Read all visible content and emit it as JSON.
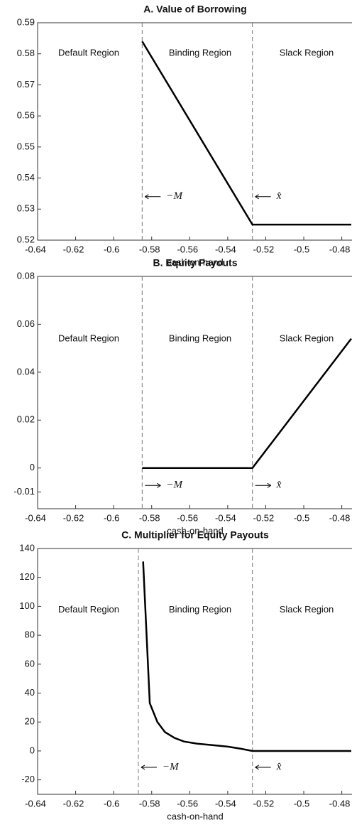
{
  "chart_data": [
    {
      "type": "line",
      "title": "A. Value of Borrowing",
      "x_label": "cash-on-hand",
      "xlim": [
        -0.64,
        -0.475
      ],
      "xticks": [
        -0.64,
        -0.62,
        -0.6,
        -0.58,
        -0.56,
        -0.54,
        -0.52,
        -0.5,
        -0.48
      ],
      "ylim": [
        0.52,
        0.59
      ],
      "yticks": [
        0.52,
        0.53,
        0.54,
        0.55,
        0.56,
        0.57,
        0.58,
        0.59
      ],
      "series": [
        {
          "color": "#000000",
          "x": [
            -0.585,
            -0.527,
            -0.475
          ],
          "values": [
            0.584,
            0.525,
            0.525
          ]
        }
      ],
      "vlines": [
        -0.585,
        -0.527
      ],
      "vline_labels": [
        "−M",
        "x̂"
      ],
      "regions": [
        "Default Region",
        "Binding Region",
        "Slack Region"
      ]
    },
    {
      "type": "line",
      "title": "B. Equity Payouts",
      "x_label": "cash-on-hand",
      "xlim": [
        -0.64,
        -0.475
      ],
      "xticks": [
        -0.64,
        -0.62,
        -0.6,
        -0.58,
        -0.56,
        -0.54,
        -0.52,
        -0.5,
        -0.48
      ],
      "ylim": [
        -0.017,
        0.08
      ],
      "yticks": [
        -0.01,
        0,
        0.02,
        0.04,
        0.06,
        0.08
      ],
      "series": [
        {
          "color": "#000000",
          "x": [
            -0.585,
            -0.527,
            -0.475
          ],
          "values": [
            0,
            0,
            0.054
          ]
        }
      ],
      "vlines": [
        -0.585,
        -0.527
      ],
      "vline_labels": [
        "−M",
        "x̂"
      ],
      "regions": [
        "Default Region",
        "Binding Region",
        "Slack Region"
      ]
    },
    {
      "type": "line",
      "title": "C. Multiplier for Equity Payouts",
      "x_label": "cash-on-hand",
      "xlim": [
        -0.64,
        -0.475
      ],
      "xticks": [
        -0.64,
        -0.62,
        -0.6,
        -0.58,
        -0.56,
        -0.54,
        -0.52,
        -0.5,
        -0.48
      ],
      "ylim": [
        -30,
        140
      ],
      "yticks": [
        -20,
        0,
        20,
        40,
        60,
        80,
        100,
        120,
        140
      ],
      "series": [
        {
          "color": "#000000",
          "x": [
            -0.5845,
            -0.581,
            -0.577,
            -0.573,
            -0.568,
            -0.563,
            -0.556,
            -0.548,
            -0.54,
            -0.533,
            -0.527,
            -0.475
          ],
          "values": [
            131,
            33,
            20,
            13,
            9,
            6.5,
            5,
            4,
            3,
            1.5,
            0,
            0
          ]
        }
      ],
      "vlines": [
        -0.587,
        -0.527
      ],
      "vline_labels": [
        "−M",
        "x̂"
      ],
      "regions": [
        "Default Region",
        "Binding Region",
        "Slack Region"
      ]
    }
  ]
}
